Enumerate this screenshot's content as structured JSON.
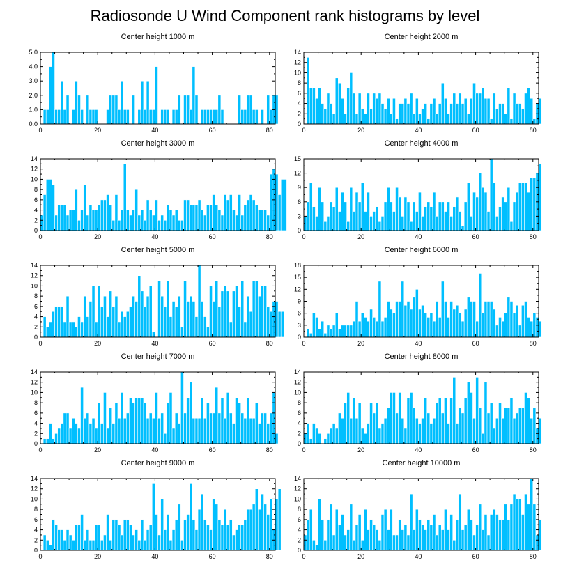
{
  "title": "Radiosonde U Wind Component rank histograms by level",
  "colors": {
    "bar": "#00bfff",
    "bar_edge": "#ffffff",
    "axis": "#000000"
  },
  "chart_data": [
    {
      "type": "bar",
      "title": "Center height 1000 m",
      "xlim": [
        0,
        82
      ],
      "ylim": [
        0,
        5
      ],
      "xticks": [
        0,
        20,
        40,
        60,
        80
      ],
      "yticks": [
        0,
        1,
        2,
        3,
        4,
        5
      ],
      "ytick_labels": [
        "0.0",
        "1.0",
        "2.0",
        "3.0",
        "4.0",
        "5.0"
      ],
      "values": [
        0,
        1,
        1,
        4,
        5,
        1,
        1,
        3,
        1,
        2,
        0,
        1,
        3,
        2,
        1,
        0,
        2,
        1,
        1,
        1,
        0,
        0,
        0,
        1,
        2,
        2,
        2,
        1,
        3,
        1,
        1,
        0,
        2,
        0,
        1,
        3,
        1,
        3,
        1,
        1,
        4,
        0,
        1,
        1,
        1,
        0,
        1,
        1,
        2,
        0,
        2,
        2,
        1,
        4,
        2,
        0,
        1,
        1,
        1,
        1,
        1,
        1,
        2,
        1,
        0,
        0,
        0,
        0,
        0,
        2,
        1,
        1,
        2,
        2,
        1,
        1,
        0,
        1,
        0,
        2,
        1,
        2,
        2
      ]
    },
    {
      "type": "bar",
      "title": "Center height 2000 m",
      "xlim": [
        0,
        82
      ],
      "ylim": [
        0,
        14
      ],
      "xticks": [
        0,
        20,
        40,
        60,
        80
      ],
      "yticks": [
        0,
        2,
        4,
        6,
        8,
        10,
        12,
        14
      ],
      "ytick_labels": [
        "0",
        "2",
        "4",
        "6",
        "8",
        "10",
        "12",
        "14"
      ],
      "values": [
        0,
        13,
        7,
        7,
        5,
        7,
        4,
        3,
        6,
        4,
        2,
        9,
        8,
        5,
        2,
        7,
        10,
        6,
        2,
        6,
        3,
        2,
        6,
        3,
        6,
        5,
        6,
        4,
        3,
        5,
        2,
        5,
        1,
        4,
        4,
        5,
        4,
        6,
        2,
        5,
        2,
        3,
        4,
        1,
        4,
        5,
        2,
        4,
        8,
        5,
        2,
        4,
        6,
        4,
        6,
        4,
        5,
        2,
        5,
        8,
        6,
        6,
        7,
        5,
        5,
        1,
        6,
        3,
        4,
        4,
        2,
        7,
        1,
        6,
        4,
        4,
        3,
        6,
        7,
        5,
        1,
        4,
        5
      ]
    },
    {
      "type": "bar",
      "title": "Center height 3000 m",
      "xlim": [
        0,
        82
      ],
      "ylim": [
        0,
        14
      ],
      "xticks": [
        0,
        20,
        40,
        60,
        80
      ],
      "yticks": [
        0,
        2,
        4,
        6,
        8,
        10,
        12,
        14
      ],
      "ytick_labels": [
        "0",
        "2",
        "4",
        "6",
        "8",
        "10",
        "12",
        "14"
      ],
      "values": [
        3,
        7,
        10,
        10,
        9,
        3,
        5,
        5,
        5,
        3,
        4,
        4,
        8,
        2,
        4,
        9,
        3,
        5,
        4,
        4,
        5,
        6,
        6,
        7,
        5,
        2,
        7,
        2,
        4,
        13,
        4,
        3,
        4,
        8,
        3,
        4,
        2,
        6,
        4,
        3,
        6,
        2,
        3,
        2,
        5,
        4,
        3,
        4,
        2,
        2,
        6,
        6,
        5,
        5,
        5,
        6,
        4,
        3,
        5,
        5,
        7,
        5,
        4,
        3,
        7,
        6,
        7,
        4,
        3,
        7,
        3,
        5,
        6,
        7,
        6,
        5,
        4,
        4,
        4,
        3,
        11,
        12,
        11,
        7,
        10,
        10
      ]
    },
    {
      "type": "bar",
      "title": "Center height 4000 m",
      "xlim": [
        0,
        82
      ],
      "ylim": [
        0,
        15
      ],
      "xticks": [
        0,
        20,
        40,
        60,
        80
      ],
      "yticks": [
        0,
        3,
        6,
        9,
        12,
        15
      ],
      "ytick_labels": [
        "0",
        "3",
        "6",
        "9",
        "12",
        "15"
      ],
      "values": [
        3,
        6,
        10,
        5,
        3,
        9,
        6,
        2,
        3,
        6,
        5,
        9,
        4,
        8,
        6,
        2,
        9,
        4,
        8,
        6,
        10,
        4,
        8,
        3,
        4,
        5,
        2,
        3,
        6,
        9,
        6,
        4,
        9,
        7,
        3,
        7,
        6,
        2,
        6,
        4,
        8,
        3,
        5,
        6,
        5,
        8,
        3,
        6,
        6,
        4,
        6,
        3,
        5,
        7,
        4,
        1,
        6,
        10,
        3,
        8,
        7,
        12,
        9,
        8,
        4,
        15,
        10,
        3,
        5,
        7,
        6,
        9,
        2,
        6,
        8,
        10,
        10,
        10,
        8,
        11,
        11,
        12,
        14
      ]
    },
    {
      "type": "bar",
      "title": "Center height 5000 m",
      "xlim": [
        0,
        82
      ],
      "ylim": [
        0,
        14
      ],
      "xticks": [
        0,
        20,
        40,
        60,
        80
      ],
      "yticks": [
        0,
        2,
        4,
        6,
        8,
        10,
        12,
        14
      ],
      "ytick_labels": [
        "0",
        "2",
        "4",
        "6",
        "8",
        "10",
        "12",
        "14"
      ],
      "values": [
        0,
        4,
        2,
        3,
        5,
        6,
        6,
        6,
        3,
        8,
        3,
        3,
        2,
        4,
        3,
        8,
        4,
        7,
        10,
        3,
        10,
        6,
        8,
        4,
        9,
        6,
        8,
        3,
        5,
        4,
        5,
        6,
        8,
        7,
        12,
        9,
        6,
        8,
        10,
        1,
        0,
        11,
        8,
        6,
        11,
        4,
        7,
        6,
        8,
        2,
        11,
        7,
        8,
        7,
        4,
        14,
        7,
        4,
        2,
        10,
        7,
        11,
        6,
        9,
        10,
        9,
        3,
        9,
        10,
        6,
        11,
        3,
        8,
        5,
        11,
        11,
        8,
        10,
        10,
        6,
        5,
        7,
        7,
        5,
        5
      ]
    },
    {
      "type": "bar",
      "title": "Center height 6000 m",
      "xlim": [
        0,
        82
      ],
      "ylim": [
        0,
        18
      ],
      "xticks": [
        0,
        20,
        40,
        60,
        80
      ],
      "yticks": [
        0,
        3,
        6,
        9,
        12,
        15,
        18
      ],
      "ytick_labels": [
        "0",
        "3",
        "6",
        "9",
        "12",
        "15",
        "18"
      ],
      "values": [
        0,
        2,
        1,
        6,
        5,
        2,
        4,
        1,
        3,
        2,
        3,
        6,
        2,
        3,
        3,
        3,
        3,
        4,
        9,
        4,
        6,
        5,
        4,
        7,
        5,
        4,
        14,
        4,
        5,
        9,
        7,
        6,
        9,
        9,
        14,
        8,
        9,
        7,
        10,
        12,
        7,
        8,
        6,
        5,
        6,
        4,
        9,
        5,
        14,
        9,
        5,
        9,
        7,
        8,
        6,
        4,
        7,
        10,
        9,
        9,
        4,
        16,
        6,
        9,
        9,
        9,
        7,
        3,
        5,
        4,
        6,
        10,
        9,
        6,
        8,
        3,
        8,
        9,
        5,
        4,
        6,
        5,
        4
      ]
    },
    {
      "type": "bar",
      "title": "Center height 7000 m",
      "xlim": [
        0,
        82
      ],
      "ylim": [
        0,
        14
      ],
      "xticks": [
        0,
        20,
        40,
        60,
        80
      ],
      "yticks": [
        0,
        2,
        4,
        6,
        8,
        10,
        12,
        14
      ],
      "ytick_labels": [
        "0",
        "2",
        "4",
        "6",
        "8",
        "10",
        "12",
        "14"
      ],
      "values": [
        0,
        1,
        1,
        4,
        1,
        2,
        3,
        4,
        6,
        6,
        3,
        5,
        4,
        3,
        11,
        5,
        6,
        4,
        5,
        3,
        8,
        4,
        10,
        3,
        7,
        4,
        8,
        5,
        10,
        5,
        6,
        9,
        8,
        9,
        9,
        9,
        8,
        5,
        6,
        5,
        10,
        5,
        6,
        2,
        8,
        10,
        3,
        6,
        4,
        14,
        6,
        9,
        12,
        5,
        5,
        5,
        9,
        5,
        8,
        6,
        6,
        11,
        6,
        9,
        5,
        10,
        6,
        4,
        9,
        8,
        6,
        5,
        9,
        5,
        5,
        8,
        4,
        6,
        6,
        4,
        6,
        10,
        2
      ]
    },
    {
      "type": "bar",
      "title": "Center height 8000 m",
      "xlim": [
        0,
        82
      ],
      "ylim": [
        0,
        14
      ],
      "xticks": [
        0,
        20,
        40,
        60,
        80
      ],
      "yticks": [
        0,
        2,
        4,
        6,
        8,
        10,
        12,
        14
      ],
      "ytick_labels": [
        "0",
        "2",
        "4",
        "6",
        "8",
        "10",
        "12",
        "14"
      ],
      "values": [
        2,
        4,
        1,
        4,
        3,
        2,
        0,
        1,
        2,
        3,
        4,
        3,
        6,
        5,
        8,
        10,
        5,
        9,
        5,
        8,
        3,
        2,
        4,
        8,
        6,
        8,
        3,
        4,
        5,
        7,
        10,
        10,
        6,
        10,
        5,
        3,
        9,
        10,
        7,
        5,
        4,
        5,
        9,
        6,
        4,
        5,
        8,
        9,
        6,
        9,
        4,
        9,
        13,
        4,
        7,
        6,
        9,
        12,
        10,
        5,
        13,
        7,
        2,
        12,
        6,
        8,
        3,
        5,
        8,
        5,
        7,
        7,
        9,
        5,
        6,
        7,
        7,
        10,
        9,
        5,
        7,
        3,
        5
      ]
    },
    {
      "type": "bar",
      "title": "Center height 9000 m",
      "xlim": [
        0,
        82
      ],
      "ylim": [
        0,
        14
      ],
      "xticks": [
        0,
        20,
        40,
        60,
        80
      ],
      "yticks": [
        0,
        2,
        4,
        6,
        8,
        10,
        12,
        14
      ],
      "ytick_labels": [
        "0",
        "2",
        "4",
        "6",
        "8",
        "10",
        "12",
        "14"
      ],
      "values": [
        0,
        3,
        2,
        1,
        6,
        5,
        4,
        4,
        2,
        4,
        3,
        2,
        5,
        5,
        7,
        2,
        4,
        2,
        2,
        5,
        5,
        2,
        3,
        7,
        2,
        6,
        6,
        5,
        3,
        6,
        6,
        5,
        3,
        4,
        2,
        6,
        2,
        4,
        5,
        13,
        7,
        3,
        10,
        4,
        7,
        2,
        4,
        6,
        9,
        2,
        6,
        7,
        13,
        6,
        4,
        8,
        11,
        6,
        5,
        4,
        10,
        9,
        6,
        5,
        8,
        5,
        6,
        3,
        4,
        5,
        5,
        6,
        8,
        8,
        9,
        12,
        8,
        11,
        9,
        7,
        10,
        4,
        10,
        12
      ]
    },
    {
      "type": "bar",
      "title": "Center height 10000 m",
      "xlim": [
        0,
        82
      ],
      "ylim": [
        0,
        14
      ],
      "xticks": [
        0,
        20,
        40,
        60,
        80
      ],
      "yticks": [
        0,
        2,
        4,
        6,
        8,
        10,
        12,
        14
      ],
      "ytick_labels": [
        "0",
        "2",
        "4",
        "6",
        "8",
        "10",
        "12",
        "14"
      ],
      "values": [
        3,
        6,
        8,
        2,
        1,
        10,
        6,
        2,
        6,
        9,
        3,
        8,
        5,
        7,
        3,
        4,
        9,
        2,
        5,
        7,
        2,
        8,
        4,
        6,
        5,
        4,
        2,
        7,
        8,
        4,
        8,
        3,
        3,
        6,
        4,
        5,
        3,
        11,
        4,
        8,
        6,
        5,
        4,
        6,
        5,
        7,
        3,
        5,
        4,
        8,
        4,
        7,
        2,
        6,
        11,
        4,
        5,
        8,
        6,
        3,
        5,
        9,
        4,
        7,
        3,
        7,
        8,
        7,
        6,
        6,
        9,
        6,
        9,
        11,
        10,
        10,
        7,
        11,
        9,
        14,
        9,
        3,
        6
      ]
    }
  ]
}
